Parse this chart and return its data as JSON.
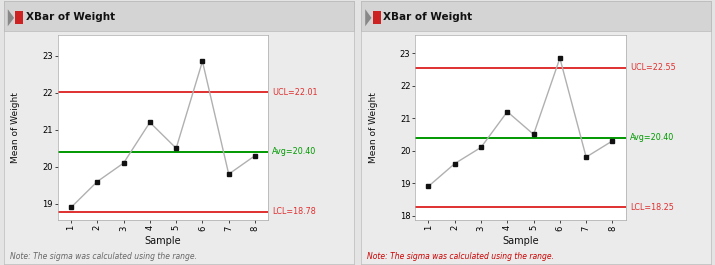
{
  "charts": [
    {
      "title": "XBar of Weight",
      "x": [
        1,
        2,
        3,
        4,
        5,
        6,
        7,
        8
      ],
      "y": [
        18.9,
        19.6,
        20.1,
        21.2,
        20.5,
        22.85,
        19.8,
        20.3
      ],
      "ucl": 22.01,
      "avg": 20.4,
      "lcl": 18.78,
      "ylim": [
        18.55,
        23.55
      ],
      "yticks": [
        19,
        20,
        21,
        22,
        23
      ],
      "note_color": "#666666"
    },
    {
      "title": "XBar of Weight",
      "x": [
        1,
        2,
        3,
        4,
        5,
        6,
        7,
        8
      ],
      "y": [
        18.9,
        19.6,
        20.1,
        21.2,
        20.5,
        22.85,
        19.8,
        20.3
      ],
      "ucl": 22.55,
      "avg": 20.4,
      "lcl": 18.25,
      "ylim": [
        17.85,
        23.55
      ],
      "yticks": [
        18,
        19,
        20,
        21,
        22,
        23
      ],
      "note_color": "#cc0000"
    }
  ],
  "xlabel": "Sample",
  "ylabel": "Mean of Weight",
  "note": "Note: The sigma was calculated using the range.",
  "bg_color": "#e4e4e4",
  "panel_bg": "#ebebeb",
  "plot_bg": "#ffffff",
  "title_bar_color": "#d4d4d4",
  "ucl_color": "#e03030",
  "avg_color": "#009900",
  "lcl_color": "#e03030",
  "line_color": "#b0b0b0",
  "point_color": "#111111",
  "xtick_labels": [
    "1",
    "2",
    "3",
    "4",
    "5",
    "6",
    "7",
    "8"
  ]
}
